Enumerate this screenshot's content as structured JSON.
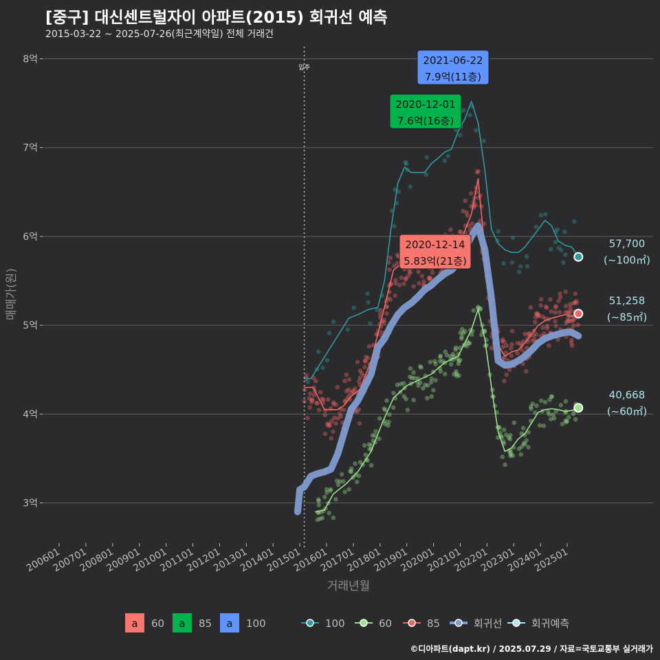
{
  "header": {
    "title": "[중구] 대신센트럴자이 아파트(2015) 회귀선 예측",
    "subtitle": "2015-03-22 ~ 2025-07-26(최근계약일) 전체 거래건"
  },
  "caption": "©디아파트(dapt.kr) / 2025.07.29 / 자료=국토교통부 실거래가",
  "colors": {
    "background": "#2b2b2d",
    "grid": "#5e5e5e",
    "s100": "#2f9aa0",
    "s60": "#9be38b",
    "s85": "#f06767",
    "trend": "#7f9ccf",
    "forecast": "#aee7ea",
    "label_green": "#00b34a",
    "label_blue": "#5f93ff",
    "label_red": "#f8766d"
  },
  "chart_data": {
    "type": "line",
    "xlabel": "거래년월",
    "ylabel": "매매가(원)",
    "x_ticks": [
      "200601",
      "200701",
      "200801",
      "200901",
      "201001",
      "201101",
      "201201",
      "201301",
      "201401",
      "201501",
      "201601",
      "201701",
      "201801",
      "201901",
      "202001",
      "202101",
      "202201",
      "202301",
      "202401",
      "202501"
    ],
    "y_ticks": [
      {
        "value": 3,
        "label": "3억"
      },
      {
        "value": 4,
        "label": "4억"
      },
      {
        "value": 5,
        "label": "5억"
      },
      {
        "value": 6,
        "label": "6억"
      },
      {
        "value": 7,
        "label": "7억"
      },
      {
        "value": 8,
        "label": "8억"
      }
    ],
    "ylim": [
      2.6,
      8.15
    ],
    "move_in": {
      "x": "2015-03",
      "label": "입주"
    },
    "series": [
      {
        "name": "100",
        "color_key": "s100",
        "points": [
          [
            "2015-03",
            4.4
          ],
          [
            "2015-06",
            4.4
          ],
          [
            "2016-11",
            5.08
          ],
          [
            "2017-03",
            5.12
          ],
          [
            "2017-08",
            5.18
          ],
          [
            "2017-12",
            5.2
          ],
          [
            "2018-03",
            5.5
          ],
          [
            "2018-06",
            6.1
          ],
          [
            "2018-09",
            6.6
          ],
          [
            "2018-12",
            6.78
          ],
          [
            "2019-03",
            6.72
          ],
          [
            "2019-06",
            6.72
          ],
          [
            "2019-09",
            6.72
          ],
          [
            "2019-12",
            6.82
          ],
          [
            "2020-03",
            6.88
          ],
          [
            "2020-06",
            6.95
          ],
          [
            "2020-09",
            6.98
          ],
          [
            "2020-12",
            7.18
          ],
          [
            "2021-03",
            7.32
          ],
          [
            "2021-06",
            7.52
          ],
          [
            "2021-09",
            7.28
          ],
          [
            "2021-12",
            6.75
          ],
          [
            "2022-03",
            6.08
          ],
          [
            "2022-06",
            5.92
          ],
          [
            "2022-09",
            5.85
          ],
          [
            "2022-12",
            5.82
          ],
          [
            "2023-03",
            5.82
          ],
          [
            "2023-06",
            5.88
          ],
          [
            "2023-09",
            5.98
          ],
          [
            "2023-12",
            6.08
          ],
          [
            "2024-03",
            6.18
          ],
          [
            "2024-06",
            6.12
          ],
          [
            "2024-09",
            5.95
          ],
          [
            "2024-12",
            5.9
          ],
          [
            "2025-03",
            5.88
          ],
          [
            "2025-06",
            5.77
          ]
        ]
      },
      {
        "name": "60",
        "color_key": "s60",
        "points": [
          [
            "2015-08",
            2.9
          ],
          [
            "2015-12",
            2.92
          ],
          [
            "2016-04",
            3.1
          ],
          [
            "2016-10",
            3.22
          ],
          [
            "2017-03",
            3.35
          ],
          [
            "2017-09",
            3.58
          ],
          [
            "2018-02",
            3.9
          ],
          [
            "2018-07",
            4.18
          ],
          [
            "2019-01",
            4.32
          ],
          [
            "2019-06",
            4.38
          ],
          [
            "2019-12",
            4.45
          ],
          [
            "2020-06",
            4.58
          ],
          [
            "2020-12",
            4.65
          ],
          [
            "2021-06",
            4.95
          ],
          [
            "2021-09",
            5.18
          ],
          [
            "2021-12",
            4.85
          ],
          [
            "2022-03",
            4.3
          ],
          [
            "2022-06",
            3.8
          ],
          [
            "2022-09",
            3.58
          ],
          [
            "2022-12",
            3.62
          ],
          [
            "2023-03",
            3.72
          ],
          [
            "2023-06",
            3.78
          ],
          [
            "2023-09",
            3.9
          ],
          [
            "2023-12",
            4.02
          ],
          [
            "2024-03",
            4.05
          ],
          [
            "2024-06",
            4.06
          ],
          [
            "2024-09",
            4.05
          ],
          [
            "2024-12",
            4.03
          ],
          [
            "2025-03",
            4.04
          ],
          [
            "2025-06",
            4.07
          ]
        ]
      },
      {
        "name": "85",
        "color_key": "s85",
        "points": [
          [
            "2015-03",
            4.3
          ],
          [
            "2015-07",
            4.3
          ],
          [
            "2015-12",
            4.05
          ],
          [
            "2016-06",
            4.05
          ],
          [
            "2016-09",
            4.1
          ],
          [
            "2016-12",
            4.2
          ],
          [
            "2017-04",
            4.28
          ],
          [
            "2017-09",
            4.6
          ],
          [
            "2018-02",
            5.1
          ],
          [
            "2018-07",
            5.62
          ],
          [
            "2018-12",
            5.72
          ],
          [
            "2019-06",
            5.65
          ],
          [
            "2019-12",
            5.7
          ],
          [
            "2020-06",
            5.78
          ],
          [
            "2020-12",
            5.88
          ],
          [
            "2021-06",
            6.25
          ],
          [
            "2021-09",
            6.65
          ],
          [
            "2021-12",
            5.85
          ],
          [
            "2022-03",
            5.1
          ],
          [
            "2022-06",
            4.78
          ],
          [
            "2022-09",
            4.65
          ],
          [
            "2022-12",
            4.7
          ],
          [
            "2023-03",
            4.72
          ],
          [
            "2023-06",
            4.8
          ],
          [
            "2023-09",
            4.9
          ],
          [
            "2023-12",
            5.0
          ],
          [
            "2024-03",
            5.05
          ],
          [
            "2024-06",
            5.08
          ],
          [
            "2024-09",
            5.1
          ],
          [
            "2024-12",
            5.12
          ],
          [
            "2025-03",
            5.1
          ],
          [
            "2025-06",
            5.13
          ]
        ]
      },
      {
        "name": "회귀선",
        "color_key": "trend",
        "points": [
          [
            "2014-12",
            2.9
          ],
          [
            "2015-01",
            3.15
          ],
          [
            "2015-03",
            3.18
          ],
          [
            "2015-06",
            3.3
          ],
          [
            "2015-09",
            3.33
          ],
          [
            "2015-12",
            3.35
          ],
          [
            "2016-03",
            3.38
          ],
          [
            "2016-06",
            3.55
          ],
          [
            "2016-09",
            3.8
          ],
          [
            "2016-12",
            4.05
          ],
          [
            "2017-03",
            4.15
          ],
          [
            "2017-06",
            4.3
          ],
          [
            "2017-09",
            4.45
          ],
          [
            "2017-12",
            4.75
          ],
          [
            "2018-03",
            4.85
          ],
          [
            "2018-06",
            5.0
          ],
          [
            "2018-09",
            5.12
          ],
          [
            "2018-12",
            5.2
          ],
          [
            "2019-03",
            5.25
          ],
          [
            "2019-06",
            5.32
          ],
          [
            "2019-09",
            5.4
          ],
          [
            "2019-12",
            5.45
          ],
          [
            "2020-03",
            5.52
          ],
          [
            "2020-06",
            5.58
          ],
          [
            "2020-09",
            5.62
          ],
          [
            "2020-12",
            5.7
          ],
          [
            "2021-03",
            5.85
          ],
          [
            "2021-06",
            6.0
          ],
          [
            "2021-09",
            6.12
          ],
          [
            "2021-12",
            5.85
          ],
          [
            "2022-03",
            5.3
          ],
          [
            "2022-06",
            4.6
          ],
          [
            "2022-09",
            4.55
          ],
          [
            "2022-12",
            4.56
          ],
          [
            "2023-03",
            4.6
          ],
          [
            "2023-06",
            4.65
          ],
          [
            "2023-09",
            4.72
          ],
          [
            "2023-12",
            4.8
          ],
          [
            "2024-03",
            4.85
          ],
          [
            "2024-06",
            4.88
          ],
          [
            "2024-09",
            4.9
          ],
          [
            "2024-12",
            4.92
          ],
          [
            "2025-03",
            4.92
          ],
          [
            "2025-06",
            4.88
          ]
        ]
      }
    ],
    "forecast": [
      {
        "series": "100",
        "value": "57,700",
        "area": "(~100㎡)",
        "x": "2025-06",
        "y": 5.77
      },
      {
        "series": "85",
        "value": "51,258",
        "area": "(~85㎡)",
        "x": "2025-06",
        "y": 5.13
      },
      {
        "series": "60",
        "value": "40,668",
        "area": "(~60㎡)",
        "x": "2025-06",
        "y": 4.07
      }
    ],
    "annotations": [
      {
        "date": "2021-06-22",
        "text": "7.9억(11층)",
        "color_key": "label_blue",
        "x": "2021-06",
        "y": 7.9
      },
      {
        "date": "2020-12-01",
        "text": "7.6억(16층)",
        "color_key": "label_green",
        "x": "2020-12",
        "y": 7.6
      },
      {
        "date": "2020-12-14",
        "text": "5.83억(21층)",
        "color_key": "label_red",
        "x": "2020-12",
        "y": 5.83
      }
    ]
  },
  "legend": {
    "fill_items": [
      {
        "key": "a",
        "label": "60",
        "color_key": "label_red"
      },
      {
        "key": "a",
        "label": "85",
        "color_key": "label_green"
      },
      {
        "key": "a",
        "label": "100",
        "color_key": "label_blue"
      }
    ],
    "line_items": [
      {
        "label": "100",
        "color_key": "s100"
      },
      {
        "label": "60",
        "color_key": "s60"
      },
      {
        "label": "85",
        "color_key": "s85"
      },
      {
        "label": "회귀선",
        "color_key": "trend"
      },
      {
        "label": "회귀예측",
        "color_key": "forecast"
      }
    ]
  }
}
